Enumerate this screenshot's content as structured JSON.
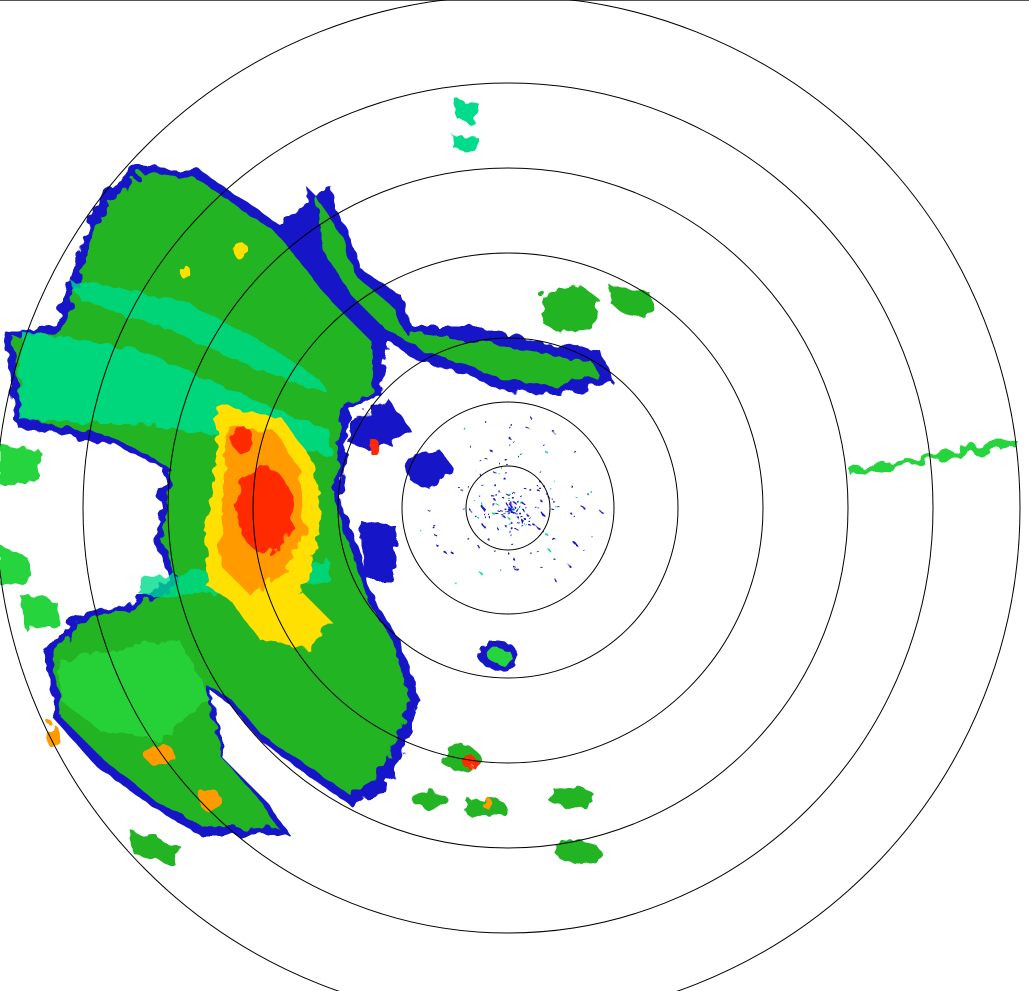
{
  "radar": {
    "colors": {
      "weak": "#1414c8",
      "light": "#00dc8c",
      "moderate": "#22b422",
      "bright": "#28d43c",
      "heavy": "#ffe000",
      "intense": "#ff9a00",
      "extreme": "#ff2a00",
      "ring": "#000000",
      "background": "#ffffff"
    },
    "range_ring_count": 7
  }
}
